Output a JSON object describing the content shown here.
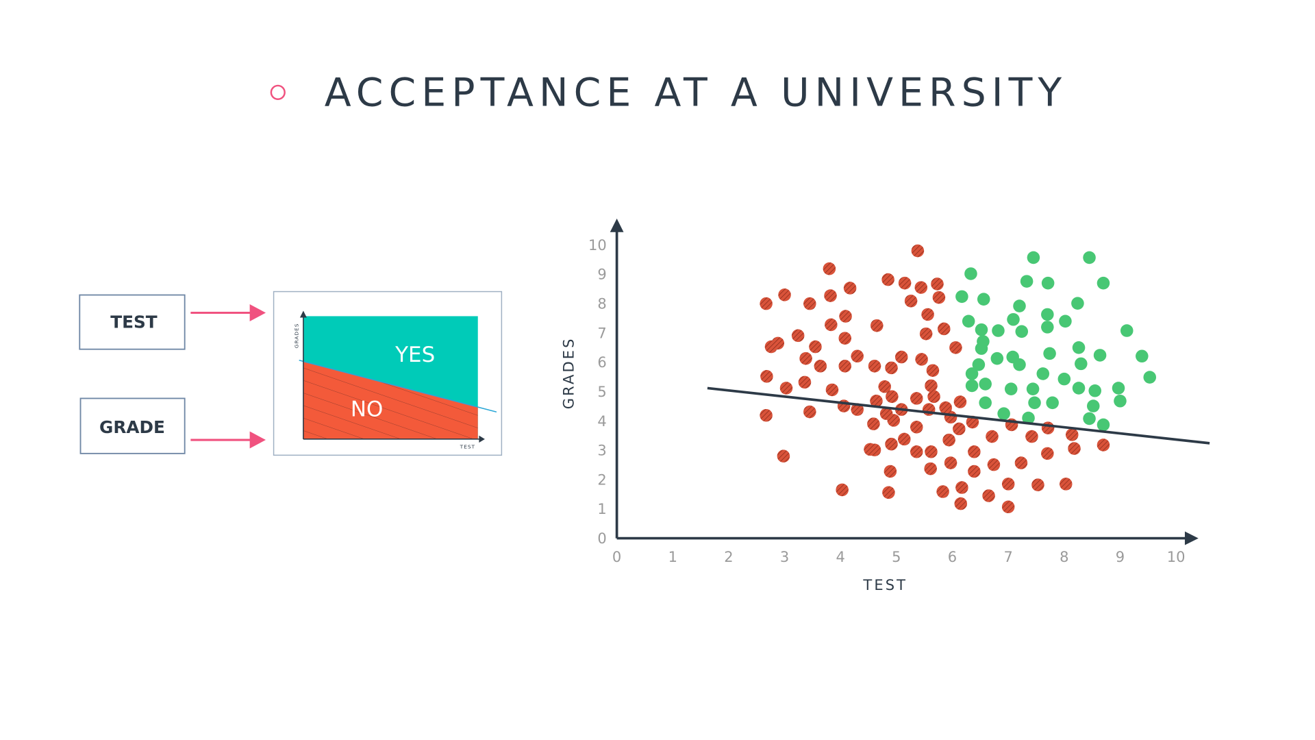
{
  "title": "ACCEPTANCE AT A UNIVERSITY",
  "diagram": {
    "inputs": [
      "TEST",
      "GRADE"
    ],
    "mini_chart": {
      "y_label": "GRADES",
      "x_label": "TEST",
      "yes": "YES",
      "no": "NO"
    }
  },
  "chart_data": {
    "type": "scatter",
    "xlabel": "TEST",
    "ylabel": "GRADES",
    "xlim": [
      0,
      10.4
    ],
    "ylim": [
      0,
      10.9
    ],
    "xticks": [
      0,
      1,
      2,
      3,
      4,
      5,
      6,
      7,
      8,
      9,
      10
    ],
    "yticks": [
      0,
      1,
      2,
      3,
      4,
      5,
      6,
      7,
      8,
      9,
      10
    ],
    "boundary": {
      "color": "#2d3a47",
      "x": [
        1.62,
        10.6
      ],
      "y": [
        5.12,
        3.24
      ]
    },
    "series": [
      {
        "color": "#d9533a",
        "hatched": true,
        "x": [
          5.38,
          3.8,
          4.85,
          5.15,
          5.44,
          5.73,
          4.17,
          3.0,
          2.67,
          3.45,
          3.82,
          5.26,
          5.76,
          4.09,
          5.56,
          3.83,
          4.65,
          5.85,
          5.53,
          3.24,
          4.08,
          3.55,
          2.76,
          2.88,
          6.06,
          5.09,
          5.45,
          3.38,
          4.3,
          3.64,
          4.08,
          4.61,
          4.91,
          5.65,
          2.68,
          3.36,
          4.79,
          5.62,
          3.03,
          3.85,
          4.92,
          5.36,
          5.67,
          6.14,
          4.64,
          5.09,
          5.58,
          5.88,
          4.06,
          4.3,
          2.67,
          3.45,
          4.82,
          4.95,
          4.59,
          5.36,
          5.97,
          6.36,
          6.12,
          7.06,
          7.71,
          7.42,
          8.14,
          6.71,
          5.14,
          5.94,
          4.91,
          4.53,
          4.61,
          5.36,
          5.62,
          6.39,
          7.7,
          8.18,
          8.7,
          2.98,
          5.97,
          6.74,
          7.23,
          4.89,
          5.61,
          6.39,
          4.03,
          4.86,
          5.83,
          6.17,
          7.0,
          7.53,
          8.03,
          6.65,
          6.15,
          7.0
        ],
        "values": [
          9.8,
          9.19,
          8.82,
          8.7,
          8.55,
          8.67,
          8.53,
          8.3,
          8.0,
          8.0,
          8.27,
          8.09,
          8.21,
          7.57,
          7.63,
          7.28,
          7.25,
          7.14,
          6.97,
          6.91,
          6.82,
          6.53,
          6.53,
          6.65,
          6.5,
          6.18,
          6.1,
          6.13,
          6.21,
          5.87,
          5.87,
          5.87,
          5.81,
          5.72,
          5.52,
          5.32,
          5.17,
          5.2,
          5.12,
          5.06,
          4.83,
          4.77,
          4.83,
          4.65,
          4.68,
          4.39,
          4.39,
          4.45,
          4.51,
          4.39,
          4.19,
          4.31,
          4.25,
          4.02,
          3.9,
          3.79,
          4.13,
          3.96,
          3.73,
          3.87,
          3.76,
          3.47,
          3.53,
          3.47,
          3.38,
          3.35,
          3.21,
          3.03,
          3.01,
          2.95,
          2.95,
          2.95,
          2.89,
          3.06,
          3.18,
          2.8,
          2.57,
          2.51,
          2.57,
          2.28,
          2.37,
          2.28,
          1.65,
          1.56,
          1.59,
          1.73,
          1.85,
          1.82,
          1.85,
          1.45,
          1.18,
          1.07
        ]
      },
      {
        "color": "#48c774",
        "hatched": false,
        "x": [
          6.33,
          7.45,
          8.45,
          7.33,
          7.71,
          8.7,
          6.17,
          6.56,
          7.2,
          8.24,
          7.7,
          6.29,
          7.09,
          8.02,
          6.52,
          6.82,
          7.24,
          7.7,
          9.12,
          6.55,
          6.52,
          8.26,
          7.74,
          8.64,
          9.39,
          6.8,
          7.08,
          7.2,
          6.47,
          8.3,
          6.35,
          7.62,
          8.0,
          9.53,
          6.35,
          6.59,
          7.05,
          7.44,
          8.26,
          8.55,
          8.97,
          6.59,
          7.47,
          7.79,
          9.0,
          8.52,
          6.92,
          7.36,
          8.45,
          8.7
        ],
        "values": [
          9.02,
          9.57,
          9.57,
          8.76,
          8.7,
          8.7,
          8.24,
          8.15,
          7.92,
          8.01,
          7.63,
          7.4,
          7.46,
          7.4,
          7.11,
          7.08,
          7.05,
          7.2,
          7.08,
          6.71,
          6.47,
          6.5,
          6.3,
          6.24,
          6.21,
          6.13,
          6.18,
          5.92,
          5.92,
          5.95,
          5.61,
          5.61,
          5.43,
          5.49,
          5.2,
          5.26,
          5.09,
          5.09,
          5.12,
          5.03,
          5.12,
          4.62,
          4.62,
          4.62,
          4.68,
          4.51,
          4.25,
          4.1,
          4.08,
          3.87
        ]
      }
    ]
  }
}
